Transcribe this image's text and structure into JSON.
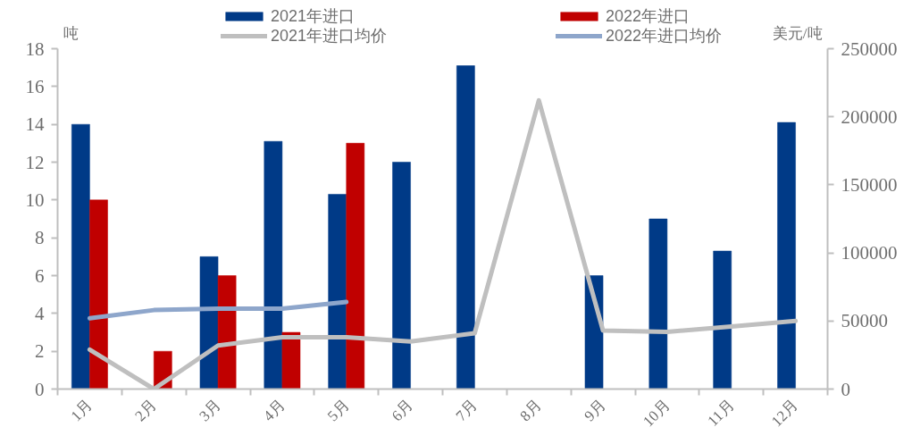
{
  "chart_data": {
    "type": "bar",
    "ylabel": "吨",
    "y2label": "美元/吨",
    "categories": [
      "1月",
      "2月",
      "3月",
      "4月",
      "5月",
      "6月",
      "7月",
      "8月",
      "9月",
      "10月",
      "11月",
      "12月"
    ],
    "series": [
      {
        "name": "2021年进口",
        "color": "#003a87",
        "values": [
          14,
          null,
          7,
          13.1,
          10.3,
          12,
          17.1,
          null,
          6,
          9,
          7.3,
          14.1
        ]
      },
      {
        "name": "2022年进口",
        "color": "#c00000",
        "values": [
          10,
          2,
          6,
          3,
          13,
          null,
          null,
          null,
          null,
          null,
          null,
          null
        ]
      },
      {
        "name": "2021年进口均价",
        "type": "line",
        "axis": "y2",
        "color": "#bfbfbf",
        "values": [
          29000,
          0,
          32000,
          38000,
          38000,
          35000,
          41000,
          212000,
          43000,
          42000,
          46000,
          50000
        ]
      },
      {
        "name": "2022年进口均价",
        "type": "line",
        "axis": "y2",
        "color": "#8ea6cb",
        "values": [
          52000,
          58000,
          59000,
          59000,
          64000,
          null,
          null,
          null,
          null,
          null,
          null,
          null
        ]
      }
    ],
    "ylim": [
      0,
      18
    ],
    "yticks": [
      0,
      2,
      4,
      6,
      8,
      10,
      12,
      14,
      16,
      18
    ],
    "y2lim": [
      0,
      250000
    ],
    "y2ticks": [
      0,
      50000,
      100000,
      150000,
      200000,
      250000
    ],
    "legend": "top"
  }
}
